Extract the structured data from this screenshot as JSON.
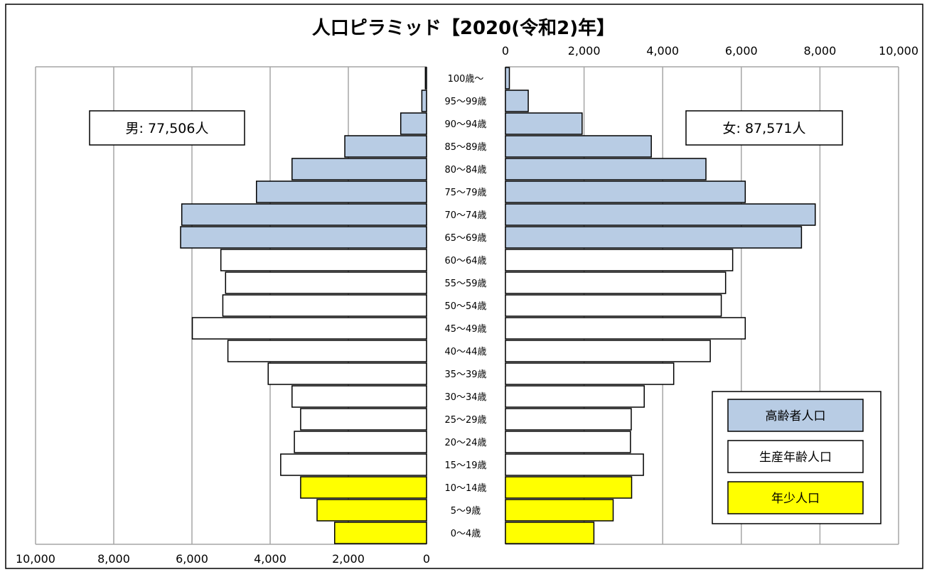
{
  "chart_data": {
    "type": "bar",
    "orientation": "horizontal-pyramid",
    "title": "人口ピラミッド【2020(令和2)年】",
    "categories": [
      "100歳～",
      "95～99歳",
      "90～94歳",
      "85～89歳",
      "80～84歳",
      "75～79歳",
      "70～74歳",
      "65～69歳",
      "60～64歳",
      "55～59歳",
      "50～54歳",
      "45～49歳",
      "40～44歳",
      "35～39歳",
      "30～34歳",
      "25～29歳",
      "20～24歳",
      "15～19歳",
      "10～14歳",
      "5～9歳",
      "0～4歳"
    ],
    "series": [
      {
        "name": "男",
        "values": [
          30,
          120,
          660,
          2090,
          3440,
          4350,
          6260,
          6290,
          5260,
          5140,
          5210,
          5990,
          5080,
          4050,
          3440,
          3220,
          3380,
          3730,
          3220,
          2800,
          2350
        ]
      },
      {
        "name": "女",
        "values": [
          100,
          580,
          1950,
          3710,
          5100,
          6100,
          7880,
          7530,
          5780,
          5600,
          5490,
          6100,
          5210,
          4280,
          3530,
          3200,
          3180,
          3510,
          3210,
          2740,
          2250
        ]
      }
    ],
    "age_groups": {
      "elderly": [
        "100歳～",
        "95～99歳",
        "90～94歳",
        "85～89歳",
        "80～84歳",
        "75～79歳",
        "70～74歳",
        "65～69歳"
      ],
      "working": [
        "60～64歳",
        "55～59歳",
        "50～54歳",
        "45～49歳",
        "40～44歳",
        "35～39歳",
        "30～34歳",
        "25～29歳",
        "20～24歳",
        "15～19歳"
      ],
      "youth": [
        "10～14歳",
        "5～9歳",
        "0～4歳"
      ]
    },
    "left_axis": {
      "range": [
        0,
        10000
      ],
      "direction": "reversed",
      "ticks": [
        "10,000",
        "8,000",
        "6,000",
        "4,000",
        "2,000",
        "0"
      ]
    },
    "right_axis": {
      "range": [
        0,
        10000
      ],
      "ticks": [
        "0",
        "2,000",
        "4,000",
        "6,000",
        "8,000",
        "10,000"
      ]
    },
    "tick_values": [
      0,
      2000,
      4000,
      6000,
      8000,
      10000
    ],
    "grid": true,
    "annotations": {
      "male_total": "男: 77,506人",
      "female_total": "女: 87,571人"
    },
    "legend": {
      "placement": "bottom-right",
      "items": [
        {
          "label": "高齢者人口",
          "color": "#b8cce4"
        },
        {
          "label": "生産年齢人口",
          "color": "#ffffff"
        },
        {
          "label": "年少人口",
          "color": "#ffff00"
        }
      ]
    },
    "colors": {
      "elderly": "#b8cce4",
      "working": "#ffffff",
      "youth": "#ffff00",
      "grid": "#a6a6a6",
      "border": "#000000"
    }
  }
}
